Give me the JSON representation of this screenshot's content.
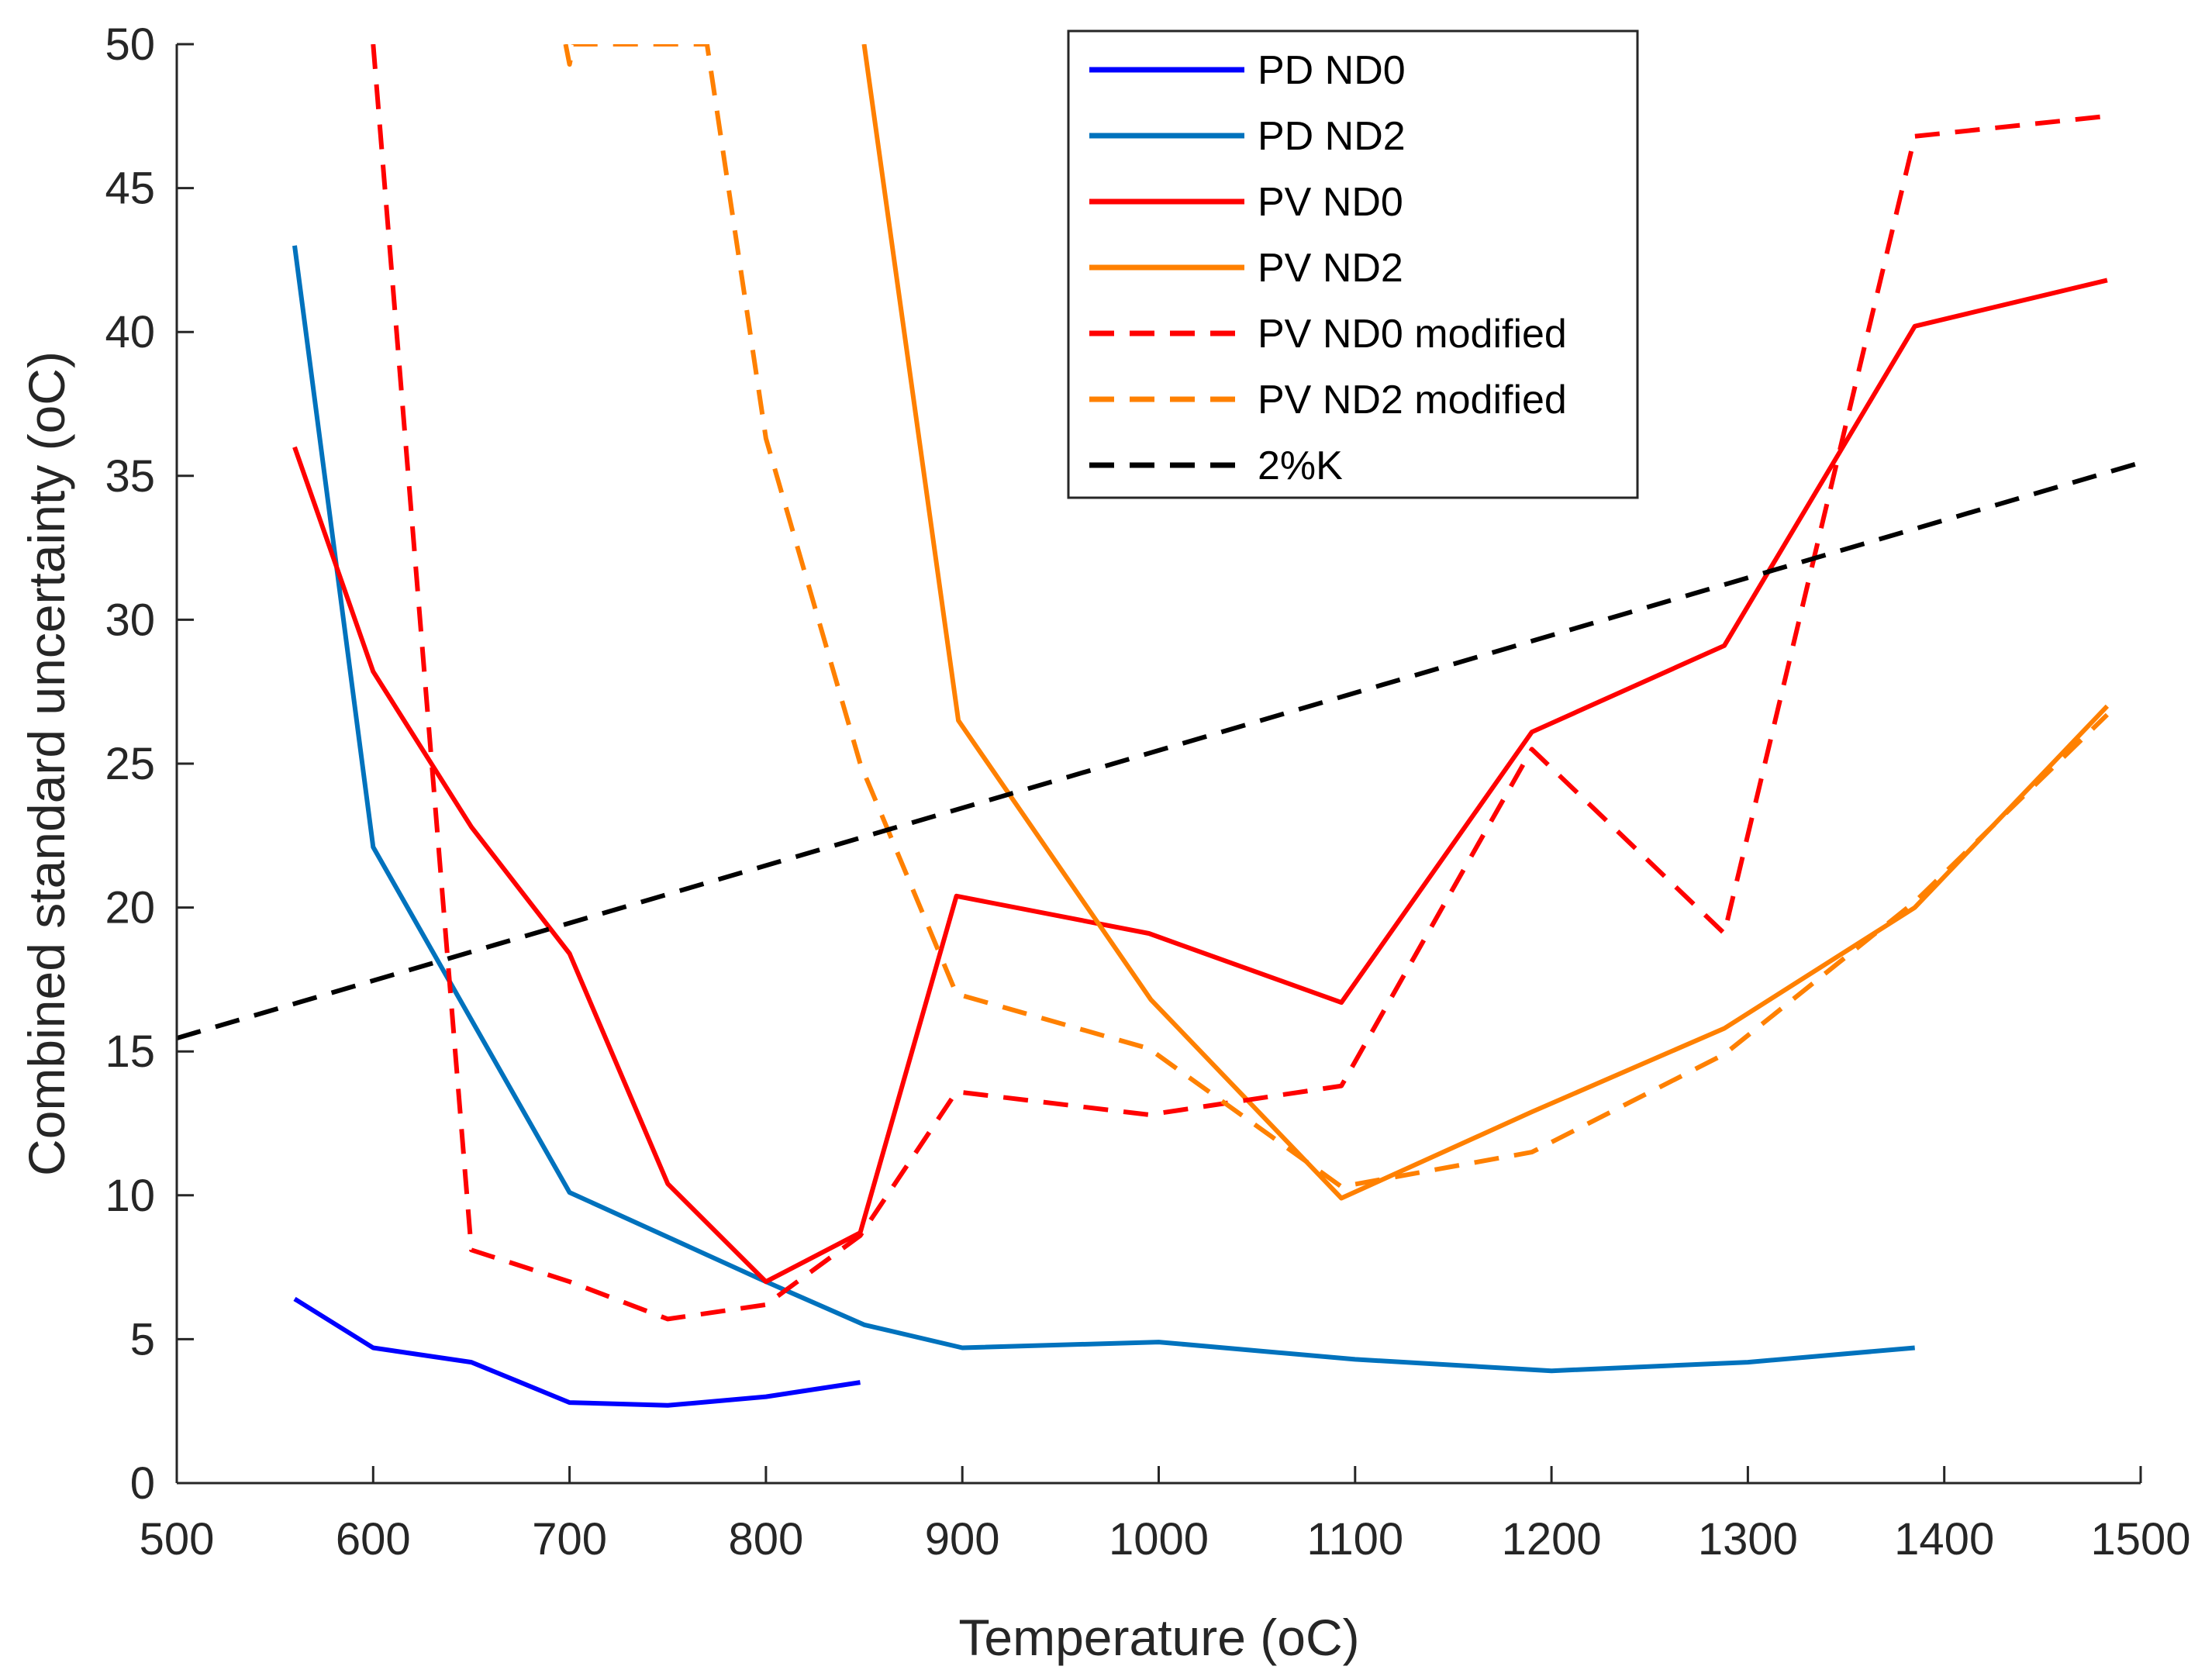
{
  "chart_data": {
    "type": "line",
    "title": "",
    "xlabel_prefix": "Temperature (",
    "xlabel_unit": "oC",
    "xlabel_suffix": ")",
    "ylabel_prefix": "Combined standard uncertainty (",
    "ylabel_unit": "oC",
    "ylabel_suffix": ")",
    "xlim": [
      500,
      1500
    ],
    "ylim": [
      0,
      50
    ],
    "xticks": [
      500,
      600,
      700,
      800,
      900,
      1000,
      1100,
      1200,
      1300,
      1400,
      1500
    ],
    "yticks": [
      0,
      5,
      10,
      15,
      20,
      25,
      30,
      35,
      40,
      45,
      50
    ],
    "grid": false,
    "legend_position": "top-center",
    "series": [
      {
        "name": "PD ND0",
        "color": "#0000FF",
        "dash": "solid",
        "x": [
          560,
          600,
          650,
          700,
          750,
          800,
          848
        ],
        "y": [
          6.4,
          4.7,
          4.2,
          2.8,
          2.7,
          3.0,
          3.5
        ]
      },
      {
        "name": "PD ND2",
        "color": "#0072BD",
        "dash": "solid",
        "x": [
          560,
          600,
          700,
          800,
          850,
          900,
          1000,
          1100,
          1200,
          1300,
          1385
        ],
        "y": [
          43,
          22.1,
          10.1,
          7.0,
          5.5,
          4.7,
          4.9,
          4.3,
          3.9,
          4.2,
          4.7
        ]
      },
      {
        "name": "PV ND0",
        "color": "#FF0000",
        "dash": "solid",
        "x": [
          560,
          600,
          650,
          700,
          750,
          800,
          848,
          897,
          995,
          1093,
          1190,
          1288,
          1385,
          1483
        ],
        "y": [
          36,
          28.2,
          22.8,
          18.4,
          10.4,
          7.0,
          8.7,
          20.4,
          19.1,
          16.7,
          26.1,
          29.1,
          40.2,
          41.8
        ]
      },
      {
        "name": "PV ND2",
        "color": "#FF8000",
        "dash": "solid",
        "x": [
          850,
          898,
          996,
          1093,
          1190,
          1288,
          1385,
          1483
        ],
        "y": [
          50,
          26.5,
          16.8,
          9.9,
          12.9,
          15.8,
          20.0,
          27.0
        ]
      },
      {
        "name": "PV ND0 modified",
        "color": "#FF0000",
        "dash": "dashed",
        "x": [
          600,
          650,
          700,
          750,
          800,
          848,
          897,
          995,
          1093,
          1190,
          1288,
          1385,
          1483
        ],
        "y": [
          50,
          8.1,
          7.0,
          5.7,
          6.2,
          8.6,
          13.6,
          12.8,
          13.8,
          25.5,
          19.1,
          46.8,
          47.5
        ]
      },
      {
        "name": "PV ND2 modified",
        "color": "#FF8000",
        "dash": "dashed",
        "x": [
          698,
          700,
          702,
          770,
          800,
          848,
          897,
          995,
          1093,
          1190,
          1288,
          1385,
          1483
        ],
        "y": [
          50,
          49.3,
          50,
          50,
          36.3,
          25.0,
          17.0,
          15.1,
          10.3,
          11.5,
          14.9,
          20.2,
          26.7
        ]
      },
      {
        "name": "2%K",
        "color": "#000000",
        "dash": "dashed",
        "x": [
          500,
          1500
        ],
        "y": [
          15.46,
          35.46
        ]
      }
    ]
  }
}
